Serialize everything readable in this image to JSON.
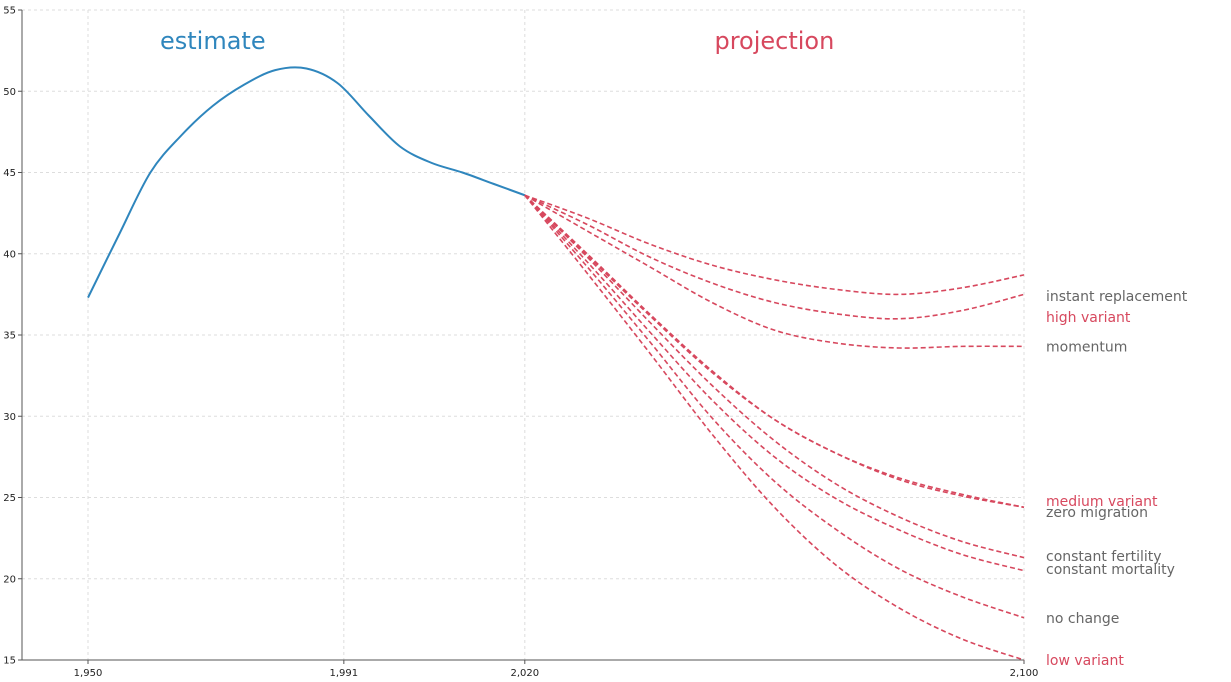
{
  "chart_data": {
    "type": "line",
    "title": "",
    "xlabel": "",
    "ylabel": "",
    "xlim": [
      1940,
      2100
    ],
    "ylim": [
      15,
      55
    ],
    "x_ticks": [
      {
        "value": 1950,
        "label": "1,950"
      },
      {
        "value": 1991,
        "label": "1,991"
      },
      {
        "value": 2020,
        "label": "2,020"
      },
      {
        "value": 2100,
        "label": "2,100"
      }
    ],
    "y_ticks": [
      {
        "value": 15,
        "label": "15"
      },
      {
        "value": 20,
        "label": "20"
      },
      {
        "value": 25,
        "label": "25"
      },
      {
        "value": 30,
        "label": "30"
      },
      {
        "value": 35,
        "label": "35"
      },
      {
        "value": 40,
        "label": "40"
      },
      {
        "value": 45,
        "label": "45"
      },
      {
        "value": 50,
        "label": "50"
      },
      {
        "value": 55,
        "label": "55"
      }
    ],
    "grid": true,
    "region_labels": {
      "estimate": {
        "text": "estimate",
        "color": "#2f86bd",
        "x": 1970
      },
      "projection": {
        "text": "projection",
        "color": "#d7485e",
        "x": 2060
      }
    },
    "estimate": {
      "color": "#2f86bd",
      "points": [
        [
          1950,
          37.3
        ],
        [
          1955,
          41.2
        ],
        [
          1960,
          45.0
        ],
        [
          1965,
          47.3
        ],
        [
          1970,
          49.1
        ],
        [
          1975,
          50.4
        ],
        [
          1980,
          51.3
        ],
        [
          1985,
          51.4
        ],
        [
          1990,
          50.5
        ],
        [
          1995,
          48.5
        ],
        [
          2000,
          46.6
        ],
        [
          2005,
          45.6
        ],
        [
          2010,
          45.0
        ],
        [
          2015,
          44.3
        ],
        [
          2020,
          43.6
        ]
      ]
    },
    "projection_color": "#d7485e",
    "label_gray": "#666666",
    "series": [
      {
        "name": "instant replacement",
        "label_color": "#666666",
        "label_y": 37.4,
        "points": [
          [
            2020,
            43.6
          ],
          [
            2030,
            42.2
          ],
          [
            2040,
            40.6
          ],
          [
            2050,
            39.3
          ],
          [
            2060,
            38.4
          ],
          [
            2070,
            37.8
          ],
          [
            2080,
            37.5
          ],
          [
            2090,
            37.9
          ],
          [
            2100,
            38.7
          ]
        ]
      },
      {
        "name": "high variant",
        "label_color": "#d7485e",
        "label_y": 36.1,
        "points": [
          [
            2020,
            43.6
          ],
          [
            2030,
            41.8
          ],
          [
            2040,
            39.8
          ],
          [
            2050,
            38.2
          ],
          [
            2060,
            37.0
          ],
          [
            2070,
            36.3
          ],
          [
            2080,
            36.0
          ],
          [
            2090,
            36.5
          ],
          [
            2100,
            37.5
          ]
        ]
      },
      {
        "name": "momentum",
        "label_color": "#666666",
        "label_y": 34.3,
        "points": [
          [
            2020,
            43.6
          ],
          [
            2030,
            41.4
          ],
          [
            2040,
            39.2
          ],
          [
            2050,
            37.0
          ],
          [
            2060,
            35.3
          ],
          [
            2070,
            34.5
          ],
          [
            2080,
            34.2
          ],
          [
            2090,
            34.3
          ],
          [
            2100,
            34.3
          ]
        ]
      },
      {
        "name": "medium variant",
        "label_color": "#d7485e",
        "label_y": 24.8,
        "points": [
          [
            2020,
            43.6
          ],
          [
            2030,
            40.0
          ],
          [
            2040,
            36.3
          ],
          [
            2050,
            32.8
          ],
          [
            2060,
            29.8
          ],
          [
            2070,
            27.7
          ],
          [
            2080,
            26.2
          ],
          [
            2090,
            25.2
          ],
          [
            2100,
            24.4
          ]
        ]
      },
      {
        "name": "zero migration",
        "label_color": "#666666",
        "label_y": 24.1,
        "points": [
          [
            2020,
            43.6
          ],
          [
            2030,
            39.9
          ],
          [
            2040,
            36.2
          ],
          [
            2050,
            32.7
          ],
          [
            2060,
            29.8
          ],
          [
            2070,
            27.7
          ],
          [
            2080,
            26.1
          ],
          [
            2090,
            25.1
          ],
          [
            2100,
            24.4
          ]
        ]
      },
      {
        "name": "constant fertility",
        "label_color": "#666666",
        "label_y": 21.4,
        "points": [
          [
            2020,
            43.6
          ],
          [
            2030,
            39.8
          ],
          [
            2040,
            35.8
          ],
          [
            2050,
            31.9
          ],
          [
            2060,
            28.5
          ],
          [
            2070,
            25.8
          ],
          [
            2080,
            23.8
          ],
          [
            2090,
            22.3
          ],
          [
            2100,
            21.3
          ]
        ]
      },
      {
        "name": "constant mortality",
        "label_color": "#666666",
        "label_y": 20.6,
        "points": [
          [
            2020,
            43.6
          ],
          [
            2030,
            39.5
          ],
          [
            2040,
            35.2
          ],
          [
            2050,
            31.0
          ],
          [
            2060,
            27.5
          ],
          [
            2070,
            24.9
          ],
          [
            2080,
            23.0
          ],
          [
            2090,
            21.5
          ],
          [
            2100,
            20.5
          ]
        ]
      },
      {
        "name": "no change",
        "label_color": "#666666",
        "label_y": 17.6,
        "points": [
          [
            2020,
            43.6
          ],
          [
            2030,
            39.2
          ],
          [
            2040,
            34.6
          ],
          [
            2050,
            29.9
          ],
          [
            2060,
            26.0
          ],
          [
            2070,
            23.0
          ],
          [
            2080,
            20.6
          ],
          [
            2090,
            18.9
          ],
          [
            2100,
            17.6
          ]
        ]
      },
      {
        "name": "low variant",
        "label_color": "#d7485e",
        "label_y": 15.0,
        "points": [
          [
            2020,
            43.6
          ],
          [
            2030,
            38.8
          ],
          [
            2040,
            33.9
          ],
          [
            2050,
            28.9
          ],
          [
            2060,
            24.4
          ],
          [
            2070,
            20.8
          ],
          [
            2080,
            18.2
          ],
          [
            2090,
            16.3
          ],
          [
            2100,
            15.0
          ]
        ]
      }
    ]
  }
}
